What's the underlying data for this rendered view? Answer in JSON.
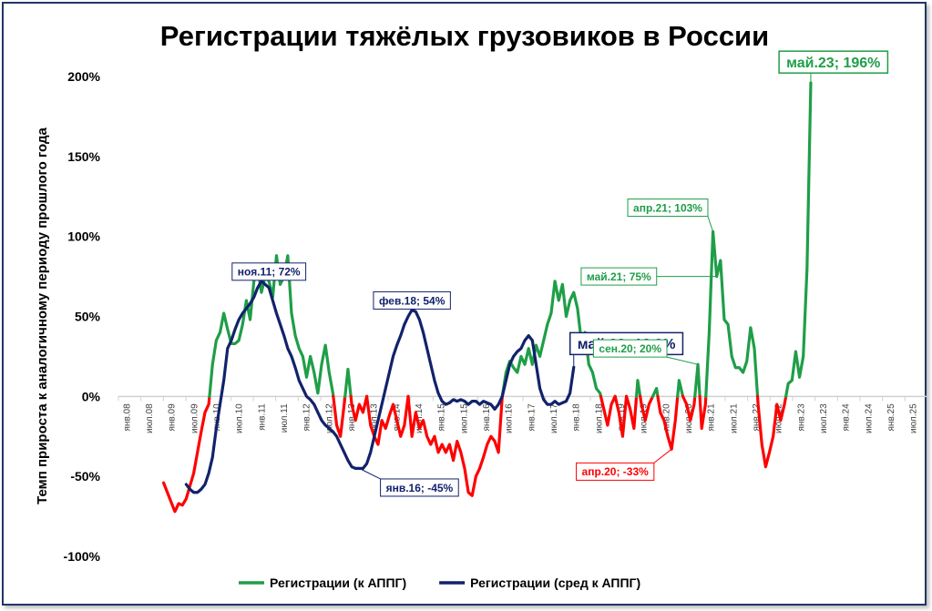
{
  "chart_data": {
    "type": "line",
    "title": "Регистрации тяжёлых грузовиков в России",
    "ylabel": "Темп прироста к аналогичному периоду прошлого года",
    "ylim": [
      -100,
      200
    ],
    "yticks": [
      "-100%",
      "-50%",
      "0%",
      "50%",
      "100%",
      "150%",
      "200%"
    ],
    "yvalues": [
      -100,
      -50,
      0,
      50,
      100,
      150,
      200
    ],
    "xlim": [
      0,
      215
    ],
    "xticks": [
      "янв.08",
      "июл.08",
      "янв.09",
      "июл.09",
      "янв.10",
      "июл.10",
      "янв.11",
      "июл.11",
      "янв.12",
      "июл.12",
      "янв.13",
      "июл.13",
      "янв.14",
      "июл.14",
      "янв.15",
      "июл.15",
      "янв.16",
      "июл.16",
      "янв.17",
      "июл.17",
      "янв.18",
      "июл.18",
      "янв.19",
      "июл.19",
      "янв.20",
      "июл.20",
      "янв.21",
      "июл.21",
      "янв.22",
      "июл.22",
      "янв.23",
      "июл.23",
      "янв.24",
      "июл.24",
      "янв.25",
      "июл.25"
    ],
    "colors": {
      "registrations_positive": "#1f9e48",
      "registrations_negative": "#ff0000",
      "average": "#12226b",
      "axis": "#d0d0d0"
    },
    "series": [
      {
        "name": "Регистрации (к АППГ)",
        "color": "#1f9e48",
        "negative_color": "#ff0000",
        "points": [
          [
            12,
            -54
          ],
          [
            13,
            -60
          ],
          [
            14,
            -66
          ],
          [
            15,
            -72
          ],
          [
            16,
            -67
          ],
          [
            17,
            -68
          ],
          [
            18,
            -64
          ],
          [
            19,
            -56
          ],
          [
            20,
            -48
          ],
          [
            21,
            -35
          ],
          [
            22,
            -22
          ],
          [
            23,
            -10
          ],
          [
            24,
            -5
          ],
          [
            25,
            20
          ],
          [
            26,
            35
          ],
          [
            27,
            40
          ],
          [
            28,
            52
          ],
          [
            29,
            42
          ],
          [
            30,
            33
          ],
          [
            31,
            33
          ],
          [
            32,
            35
          ],
          [
            33,
            45
          ],
          [
            34,
            60
          ],
          [
            35,
            48
          ],
          [
            36,
            72
          ],
          [
            37,
            80
          ],
          [
            38,
            65
          ],
          [
            39,
            75
          ],
          [
            40,
            72
          ],
          [
            41,
            62
          ],
          [
            42,
            88
          ],
          [
            43,
            70
          ],
          [
            44,
            75
          ],
          [
            45,
            88
          ],
          [
            46,
            52
          ],
          [
            47,
            38
          ],
          [
            48,
            30
          ],
          [
            49,
            25
          ],
          [
            50,
            12
          ],
          [
            51,
            25
          ],
          [
            52,
            15
          ],
          [
            53,
            2
          ],
          [
            54,
            20
          ],
          [
            55,
            32
          ],
          [
            56,
            15
          ],
          [
            57,
            2
          ],
          [
            58,
            -18
          ],
          [
            59,
            -25
          ],
          [
            60,
            -5
          ],
          [
            61,
            17
          ],
          [
            62,
            -5
          ],
          [
            63,
            -15
          ],
          [
            64,
            -5
          ],
          [
            65,
            -10
          ],
          [
            66,
            0
          ],
          [
            67,
            -18
          ],
          [
            68,
            -25
          ],
          [
            69,
            -30
          ],
          [
            70,
            -15
          ],
          [
            71,
            -20
          ],
          [
            72,
            -12
          ],
          [
            73,
            -5
          ],
          [
            74,
            -15
          ],
          [
            75,
            -25
          ],
          [
            76,
            -18
          ],
          [
            77,
            0
          ],
          [
            78,
            -25
          ],
          [
            79,
            -10
          ],
          [
            80,
            -20
          ],
          [
            81,
            -15
          ],
          [
            82,
            -25
          ],
          [
            83,
            -30
          ],
          [
            84,
            -25
          ],
          [
            85,
            -35
          ],
          [
            86,
            -30
          ],
          [
            87,
            -35
          ],
          [
            88,
            -30
          ],
          [
            89,
            -40
          ],
          [
            90,
            -28
          ],
          [
            91,
            -35
          ],
          [
            92,
            -45
          ],
          [
            93,
            -60
          ],
          [
            94,
            -62
          ],
          [
            95,
            -50
          ],
          [
            96,
            -45
          ],
          [
            97,
            -38
          ],
          [
            98,
            -30
          ],
          [
            99,
            -25
          ],
          [
            100,
            -28
          ],
          [
            101,
            -35
          ],
          [
            102,
            0
          ],
          [
            103,
            15
          ],
          [
            104,
            22
          ],
          [
            105,
            18
          ],
          [
            106,
            15
          ],
          [
            107,
            25
          ],
          [
            108,
            20
          ],
          [
            109,
            30
          ],
          [
            110,
            20
          ],
          [
            111,
            32
          ],
          [
            112,
            25
          ],
          [
            113,
            35
          ],
          [
            114,
            45
          ],
          [
            115,
            52
          ],
          [
            116,
            72
          ],
          [
            117,
            60
          ],
          [
            118,
            70
          ],
          [
            119,
            50
          ],
          [
            120,
            60
          ],
          [
            121,
            65
          ],
          [
            122,
            55
          ],
          [
            123,
            35
          ],
          [
            124,
            40
          ],
          [
            125,
            20
          ],
          [
            126,
            15
          ],
          [
            127,
            5
          ],
          [
            128,
            2
          ],
          [
            129,
            -8
          ],
          [
            130,
            -18
          ],
          [
            131,
            -5
          ],
          [
            132,
            0
          ],
          [
            133,
            -10
          ],
          [
            134,
            -25
          ],
          [
            135,
            0
          ],
          [
            136,
            -8
          ],
          [
            137,
            -20
          ],
          [
            138,
            10
          ],
          [
            139,
            -5
          ],
          [
            140,
            -15
          ],
          [
            141,
            -5
          ],
          [
            142,
            0
          ],
          [
            143,
            5
          ],
          [
            144,
            -10
          ],
          [
            145,
            -15
          ],
          [
            146,
            -25
          ],
          [
            147,
            -33
          ],
          [
            148,
            -15
          ],
          [
            149,
            10
          ],
          [
            150,
            0
          ],
          [
            151,
            -5
          ],
          [
            152,
            -15
          ],
          [
            153,
            -5
          ],
          [
            154,
            20
          ],
          [
            155,
            -20
          ],
          [
            156,
            -5
          ],
          [
            157,
            40
          ],
          [
            158,
            103
          ],
          [
            159,
            75
          ],
          [
            160,
            85
          ],
          [
            161,
            48
          ],
          [
            162,
            45
          ],
          [
            163,
            25
          ],
          [
            164,
            18
          ],
          [
            165,
            18
          ],
          [
            166,
            15
          ],
          [
            167,
            22
          ],
          [
            168,
            43
          ],
          [
            169,
            30
          ],
          [
            170,
            -5
          ],
          [
            171,
            -30
          ],
          [
            172,
            -44
          ],
          [
            173,
            -35
          ],
          [
            174,
            -25
          ],
          [
            175,
            -5
          ],
          [
            176,
            -15
          ],
          [
            177,
            -5
          ],
          [
            178,
            8
          ],
          [
            179,
            10
          ],
          [
            180,
            28
          ],
          [
            181,
            12
          ],
          [
            182,
            25
          ],
          [
            183,
            80
          ],
          [
            184,
            196
          ]
        ]
      },
      {
        "name": "Регистрации (сред к АППГ)",
        "color": "#12226b",
        "points": [
          [
            18,
            -55
          ],
          [
            19,
            -58
          ],
          [
            20,
            -60
          ],
          [
            21,
            -60
          ],
          [
            22,
            -58
          ],
          [
            23,
            -55
          ],
          [
            24,
            -48
          ],
          [
            25,
            -38
          ],
          [
            26,
            -20
          ],
          [
            27,
            -5
          ],
          [
            28,
            10
          ],
          [
            29,
            30
          ],
          [
            30,
            35
          ],
          [
            31,
            42
          ],
          [
            32,
            48
          ],
          [
            33,
            52
          ],
          [
            34,
            55
          ],
          [
            35,
            58
          ],
          [
            36,
            62
          ],
          [
            37,
            68
          ],
          [
            38,
            72
          ],
          [
            39,
            70
          ],
          [
            40,
            68
          ],
          [
            41,
            60
          ],
          [
            42,
            52
          ],
          [
            43,
            45
          ],
          [
            44,
            38
          ],
          [
            45,
            30
          ],
          [
            46,
            25
          ],
          [
            47,
            18
          ],
          [
            48,
            10
          ],
          [
            49,
            5
          ],
          [
            50,
            0
          ],
          [
            51,
            -2
          ],
          [
            52,
            -5
          ],
          [
            53,
            -10
          ],
          [
            54,
            -15
          ],
          [
            55,
            -18
          ],
          [
            56,
            -20
          ],
          [
            57,
            -22
          ],
          [
            58,
            -25
          ],
          [
            59,
            -30
          ],
          [
            60,
            -35
          ],
          [
            61,
            -40
          ],
          [
            62,
            -44
          ],
          [
            63,
            -45
          ],
          [
            64,
            -45
          ],
          [
            65,
            -45
          ],
          [
            66,
            -42
          ],
          [
            67,
            -35
          ],
          [
            68,
            -25
          ],
          [
            69,
            -15
          ],
          [
            70,
            -5
          ],
          [
            71,
            5
          ],
          [
            72,
            15
          ],
          [
            73,
            25
          ],
          [
            74,
            32
          ],
          [
            75,
            38
          ],
          [
            76,
            45
          ],
          [
            77,
            50
          ],
          [
            78,
            54
          ],
          [
            79,
            53
          ],
          [
            80,
            48
          ],
          [
            81,
            40
          ],
          [
            82,
            30
          ],
          [
            83,
            20
          ],
          [
            84,
            10
          ],
          [
            85,
            2
          ],
          [
            86,
            -3
          ],
          [
            87,
            -5
          ],
          [
            88,
            -4
          ],
          [
            89,
            -2
          ],
          [
            90,
            -3
          ],
          [
            91,
            -2
          ],
          [
            92,
            -3
          ],
          [
            93,
            -5
          ],
          [
            94,
            -3
          ],
          [
            95,
            -3
          ],
          [
            96,
            -5
          ],
          [
            97,
            -3
          ],
          [
            98,
            -4
          ],
          [
            99,
            -5
          ],
          [
            100,
            -8
          ],
          [
            101,
            -5
          ],
          [
            102,
            0
          ],
          [
            103,
            10
          ],
          [
            104,
            20
          ],
          [
            105,
            25
          ],
          [
            106,
            28
          ],
          [
            107,
            30
          ],
          [
            108,
            35
          ],
          [
            109,
            38
          ],
          [
            110,
            35
          ],
          [
            111,
            20
          ],
          [
            112,
            5
          ],
          [
            113,
            -2
          ],
          [
            114,
            -5
          ],
          [
            115,
            -5
          ],
          [
            116,
            -3
          ],
          [
            117,
            -5
          ],
          [
            118,
            -4
          ],
          [
            119,
            -3
          ],
          [
            120,
            2
          ],
          [
            121,
            18.2
          ]
        ]
      }
    ],
    "annotations": [
      {
        "text": "ноя.11; 72%",
        "color": "#12226b",
        "size": "small",
        "x": 38,
        "y": 72,
        "lx": 40,
        "ly": 78
      },
      {
        "text": "фев.18; 54%",
        "color": "#12226b",
        "size": "small",
        "x": 78,
        "y": 54,
        "lx": 78,
        "ly": 60
      },
      {
        "text": "янв.16; -45%",
        "color": "#12226b",
        "size": "small",
        "x": 64,
        "y": -45,
        "lx": 80,
        "ly": -57
      },
      {
        "text": "май.23; 18,2%",
        "color": "#12226b",
        "size": "large",
        "x": 121,
        "y": 18.2,
        "lx": 135,
        "ly": 33
      },
      {
        "text": "апр.21; 103%",
        "color": "#1f9e48",
        "size": "small",
        "x": 158,
        "y": 103,
        "lx": 146,
        "ly": 118
      },
      {
        "text": "май.21; 75%",
        "color": "#1f9e48",
        "size": "small",
        "x": 159,
        "y": 75,
        "lx": 133,
        "ly": 75
      },
      {
        "text": "сен.20; 20%",
        "color": "#1f9e48",
        "size": "small",
        "x": 154,
        "y": 20,
        "lx": 136,
        "ly": 30
      },
      {
        "text": "апр.20; -33%",
        "color": "#ff0000",
        "size": "small",
        "x": 147,
        "y": -33,
        "lx": 132,
        "ly": -47
      },
      {
        "text": "май.23; 196%",
        "color": "#1f9e48",
        "size": "large",
        "x": 184,
        "y": 196,
        "lx": 190,
        "ly": 209
      }
    ],
    "legend": {
      "placement": "bottom",
      "items": [
        {
          "label": "Регистрации (к АППГ)",
          "color": "#1f9e48"
        },
        {
          "label": "Регистрации (сред к АППГ)",
          "color": "#12226b"
        }
      ]
    },
    "grid": false
  }
}
